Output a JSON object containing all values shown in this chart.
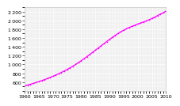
{
  "xlim": [
    1960,
    2010
  ],
  "ylim": [
    400,
    2300
  ],
  "xticks": [
    1960,
    1965,
    1970,
    1975,
    1980,
    1985,
    1990,
    1995,
    2000,
    2005,
    2010
  ],
  "yticks": [
    600,
    800,
    1000,
    1200,
    1400,
    1600,
    1800,
    2000,
    2200
  ],
  "line_color": "#ff00ff",
  "background_color": "#ffffff",
  "plot_bg_color": "#f0f0f0",
  "grid_color": "#ffffff",
  "years": [
    1960,
    1961,
    1962,
    1963,
    1964,
    1965,
    1966,
    1967,
    1968,
    1969,
    1970,
    1971,
    1972,
    1973,
    1974,
    1975,
    1976,
    1977,
    1978,
    1979,
    1980,
    1981,
    1982,
    1983,
    1984,
    1985,
    1986,
    1987,
    1988,
    1989,
    1990,
    1991,
    1992,
    1993,
    1994,
    1995,
    1996,
    1997,
    1998,
    1999,
    2000,
    2001,
    2002,
    2003,
    2004,
    2005,
    2006,
    2007,
    2008,
    2009,
    2010
  ],
  "population": [
    514,
    531,
    549,
    569,
    589,
    610,
    632,
    655,
    679,
    704,
    731,
    759,
    788,
    819,
    851,
    885,
    921,
    959,
    999,
    1041,
    1085,
    1130,
    1177,
    1225,
    1274,
    1323,
    1372,
    1421,
    1470,
    1519,
    1567,
    1614,
    1659,
    1701,
    1740,
    1776,
    1809,
    1839,
    1866,
    1891,
    1916,
    1940,
    1963,
    1987,
    2013,
    2042,
    2074,
    2108,
    2144,
    2171,
    2212
  ],
  "tick_fontsize": 4.5,
  "marker_size": 1.2,
  "line_width": 0.9
}
